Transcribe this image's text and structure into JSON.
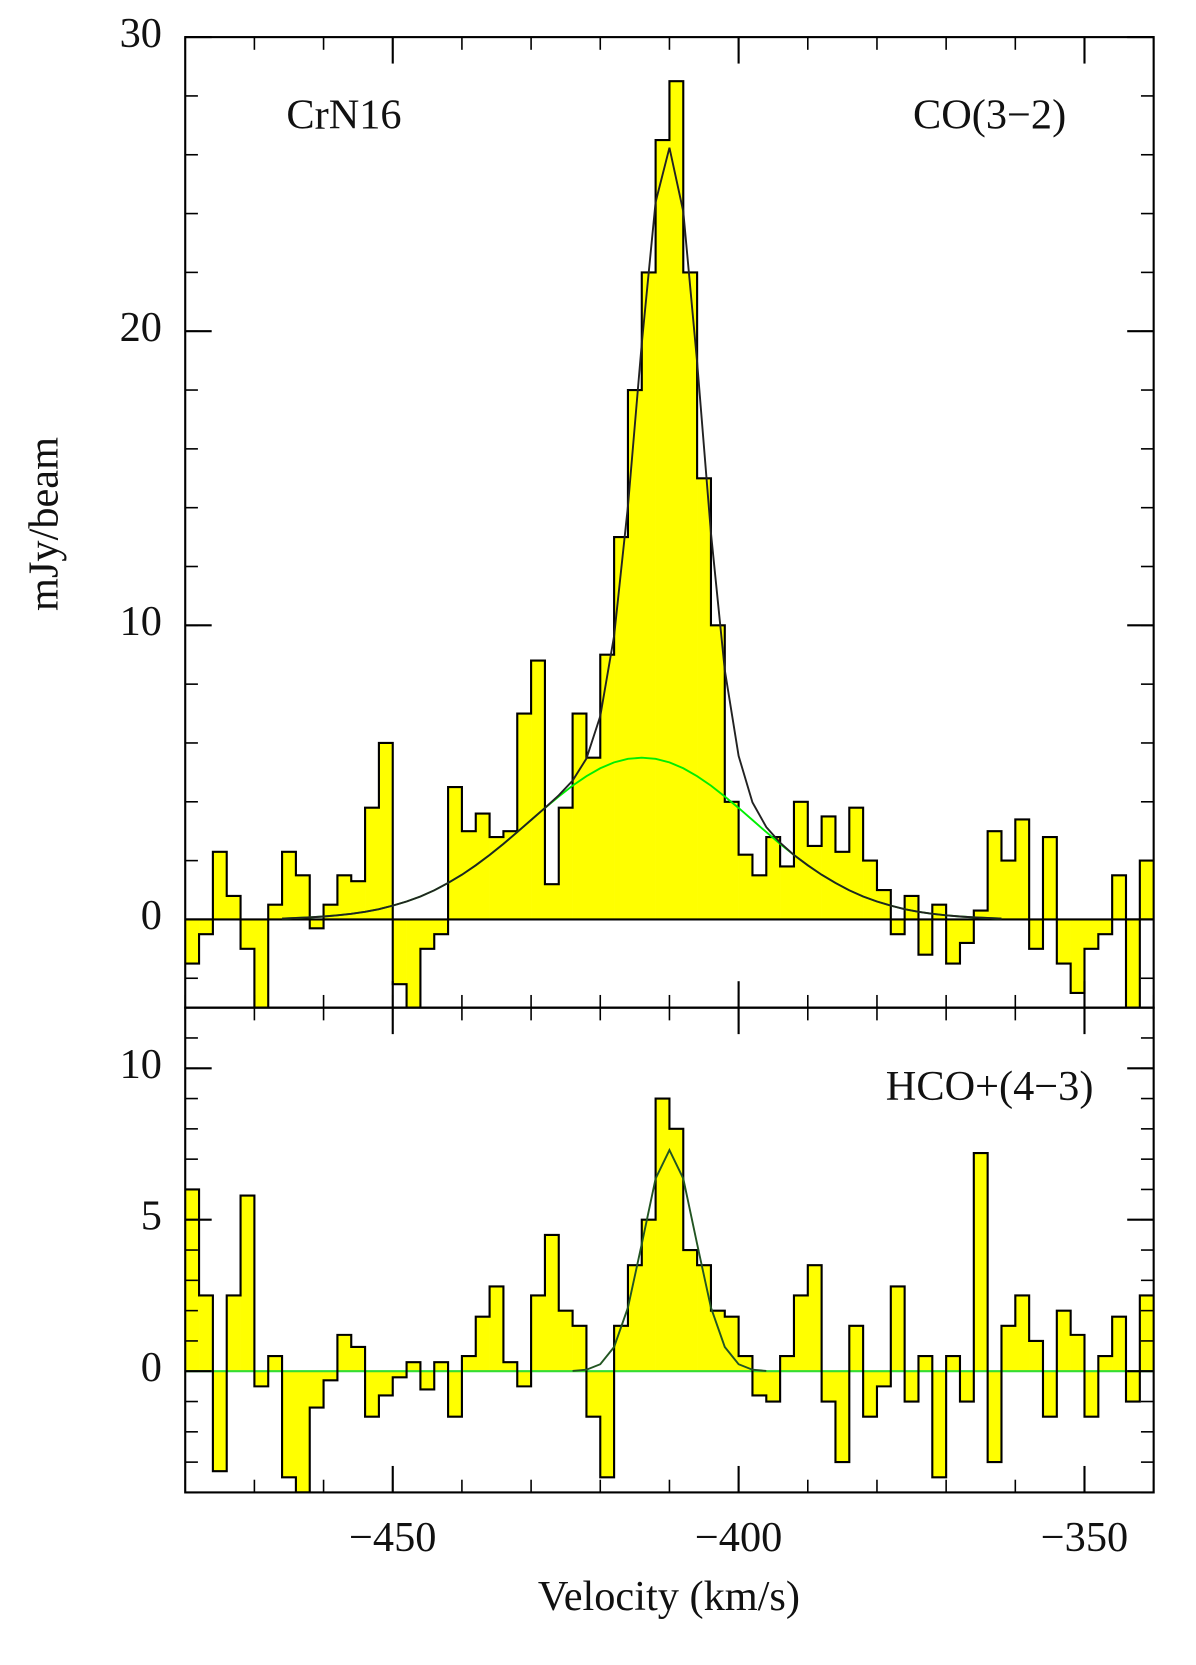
{
  "chart_data": [
    {
      "type": "step",
      "y_label": "mJy/beam",
      "annotations": [
        "CrN16",
        "CO(3−2)"
      ],
      "xlim": [
        -480,
        -340
      ],
      "xticks": [
        -450,
        -400,
        -350
      ],
      "show_xtick_labels": false,
      "xminor": 10,
      "ylim": [
        -3,
        30
      ],
      "yticks": [
        0,
        10,
        20,
        30
      ],
      "yminor": 2,
      "color": "#ffff00",
      "zero_line_color": "#000000",
      "x": [
        -479,
        -477,
        -475,
        -473,
        -471,
        -469,
        -467,
        -465,
        -463,
        -461,
        -459,
        -457,
        -455,
        -453,
        -451,
        -449,
        -447,
        -445,
        -443,
        -441,
        -439,
        -437,
        -435,
        -433,
        -431,
        -429,
        -427,
        -425,
        -423,
        -421,
        -419,
        -417,
        -415,
        -413,
        -411,
        -409,
        -407,
        -405,
        -403,
        -401,
        -399,
        -397,
        -395,
        -393,
        -391,
        -389,
        -387,
        -385,
        -383,
        -381,
        -379,
        -377,
        -375,
        -373,
        -371,
        -369,
        -367,
        -365,
        -363,
        -361,
        -359,
        -357,
        -355,
        -353,
        -351,
        -349,
        -347,
        -345,
        -343,
        -341
      ],
      "values": [
        -1.5,
        -0.5,
        2.3,
        0.8,
        -1.0,
        -3.0,
        0.5,
        2.3,
        1.5,
        -0.3,
        0.5,
        1.5,
        1.3,
        3.8,
        6.0,
        -2.2,
        -3.0,
        -1.0,
        -0.5,
        4.5,
        3.0,
        3.6,
        2.8,
        3.0,
        7.0,
        8.8,
        1.2,
        3.8,
        7.0,
        5.5,
        9.0,
        13.0,
        18.0,
        22.0,
        26.5,
        28.5,
        22.0,
        15.0,
        10.0,
        4.0,
        2.2,
        1.5,
        2.8,
        1.8,
        4.0,
        2.5,
        3.5,
        2.3,
        3.8,
        2.0,
        1.0,
        -0.5,
        0.8,
        -1.2,
        0.5,
        -1.5,
        -0.8,
        0.3,
        3.0,
        2.0,
        3.4,
        -1.0,
        2.8,
        -1.5,
        -2.5,
        -1.0,
        -0.5,
        1.5,
        -3.0,
        2.0
      ],
      "fits": [
        {
          "color": "#00ee00",
          "x": [
            -466,
            -464,
            -462,
            -460,
            -458,
            -456,
            -454,
            -452,
            -450,
            -448,
            -446,
            -444,
            -442,
            -440,
            -438,
            -436,
            -434,
            -432,
            -430,
            -428,
            -426,
            -424,
            -422,
            -420,
            -418,
            -416,
            -414,
            -412,
            -410,
            -408,
            -406,
            -404,
            -402,
            -400,
            -398,
            -396,
            -394,
            -392,
            -390,
            -388,
            -386,
            -384,
            -382,
            -380,
            -378,
            -376,
            -374,
            -372,
            -370,
            -368,
            -366,
            -364,
            -362
          ],
          "values": [
            0.03,
            0.05,
            0.07,
            0.1,
            0.14,
            0.19,
            0.26,
            0.35,
            0.47,
            0.61,
            0.78,
            0.99,
            1.24,
            1.52,
            1.84,
            2.19,
            2.57,
            2.97,
            3.38,
            3.79,
            4.18,
            4.55,
            4.87,
            5.14,
            5.34,
            5.46,
            5.5,
            5.46,
            5.34,
            5.14,
            4.87,
            4.55,
            4.18,
            3.79,
            3.38,
            2.97,
            2.57,
            2.19,
            1.84,
            1.52,
            1.24,
            0.99,
            0.78,
            0.61,
            0.47,
            0.35,
            0.26,
            0.19,
            0.14,
            0.1,
            0.07,
            0.05,
            0.03
          ]
        },
        {
          "color": "#222222",
          "x": [
            -466,
            -464,
            -462,
            -460,
            -458,
            -456,
            -454,
            -452,
            -450,
            -448,
            -446,
            -444,
            -442,
            -440,
            -438,
            -436,
            -434,
            -432,
            -430,
            -428,
            -426,
            -424,
            -422,
            -420,
            -418,
            -416,
            -414,
            -412,
            -410,
            -408,
            -406,
            -404,
            -402,
            -400,
            -398,
            -396,
            -394,
            -392,
            -390,
            -388,
            -386,
            -384,
            -382,
            -380,
            -378,
            -376,
            -374,
            -372,
            -370,
            -368,
            -366,
            -364,
            -362
          ],
          "values": [
            0.03,
            0.05,
            0.07,
            0.1,
            0.14,
            0.19,
            0.26,
            0.35,
            0.47,
            0.61,
            0.78,
            0.99,
            1.24,
            1.52,
            1.84,
            2.19,
            2.57,
            2.97,
            3.38,
            3.79,
            4.22,
            4.72,
            5.47,
            6.91,
            9.64,
            14.05,
            19.58,
            24.39,
            26.24,
            24.07,
            18.95,
            13.14,
            8.48,
            5.56,
            3.98,
            3.14,
            2.61,
            2.19,
            1.84,
            1.52,
            1.24,
            0.99,
            0.78,
            0.61,
            0.47,
            0.35,
            0.26,
            0.19,
            0.14,
            0.1,
            0.07,
            0.05,
            0.03
          ]
        }
      ]
    },
    {
      "type": "step",
      "x_label": "Velocity (km/s)",
      "annotations": [
        "HCO+(4−3)"
      ],
      "xlim": [
        -480,
        -340
      ],
      "xticks": [
        {
          "value": -450,
          "label": "−450"
        },
        {
          "value": -400,
          "label": "−400"
        },
        {
          "value": -350,
          "label": "−350"
        }
      ],
      "show_xtick_labels": true,
      "xminor": 10,
      "ylim": [
        -4,
        12
      ],
      "yticks": [
        0,
        5,
        10
      ],
      "yminor": 1,
      "color": "#ffff00",
      "zero_line_color": "#33dd33",
      "x": [
        -479,
        -477,
        -475,
        -473,
        -471,
        -469,
        -467,
        -465,
        -463,
        -461,
        -459,
        -457,
        -455,
        -453,
        -451,
        -449,
        -447,
        -445,
        -443,
        -441,
        -439,
        -437,
        -435,
        -433,
        -431,
        -429,
        -427,
        -425,
        -423,
        -421,
        -419,
        -417,
        -415,
        -413,
        -411,
        -409,
        -407,
        -405,
        -403,
        -401,
        -399,
        -397,
        -395,
        -393,
        -391,
        -389,
        -387,
        -385,
        -383,
        -381,
        -379,
        -377,
        -375,
        -373,
        -371,
        -369,
        -367,
        -365,
        -363,
        -361,
        -359,
        -357,
        -355,
        -353,
        -351,
        -349,
        -347,
        -345,
        -343,
        -341
      ],
      "values": [
        6.0,
        2.5,
        -3.3,
        2.5,
        5.8,
        -0.5,
        0.5,
        -3.5,
        -4.0,
        -1.2,
        -0.3,
        1.2,
        0.8,
        -1.5,
        -0.8,
        -0.2,
        0.3,
        -0.6,
        0.3,
        -1.5,
        0.5,
        1.8,
        2.8,
        0.3,
        -0.5,
        2.5,
        4.5,
        2.0,
        1.5,
        -1.5,
        -3.5,
        1.5,
        3.5,
        5.0,
        9.0,
        8.0,
        4.0,
        3.5,
        2.0,
        1.8,
        0.5,
        -0.8,
        -1.0,
        0.5,
        2.5,
        3.5,
        -1.0,
        -3.0,
        1.5,
        -1.5,
        -0.5,
        2.8,
        -1.0,
        0.5,
        -3.5,
        0.5,
        -1.0,
        7.2,
        -3.0,
        1.5,
        2.5,
        1.0,
        -1.5,
        2.0,
        1.2,
        -1.5,
        0.5,
        1.8,
        -1.0,
        2.5
      ],
      "fits": [
        {
          "color": "#225522",
          "x": [
            -424,
            -422,
            -420,
            -418,
            -416,
            -414,
            -412,
            -410,
            -408,
            -406,
            -404,
            -402,
            -400,
            -398,
            -396
          ],
          "values": [
            0.01,
            0.05,
            0.23,
            0.8,
            2.1,
            4.2,
            6.36,
            7.3,
            6.36,
            4.2,
            2.1,
            0.8,
            0.23,
            0.05,
            0.01
          ]
        }
      ]
    }
  ]
}
